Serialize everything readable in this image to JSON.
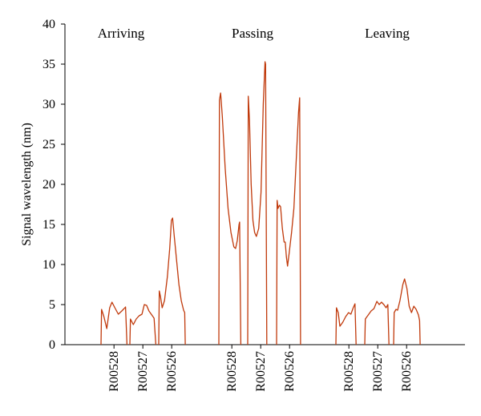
{
  "chart_data": {
    "type": "line",
    "title": "",
    "ylabel": "Signal wavelength (nm)",
    "xlabel": "",
    "ylim": [
      0,
      40
    ],
    "yticks": [
      0,
      5,
      10,
      15,
      20,
      25,
      30,
      35,
      40
    ],
    "grid": false,
    "line_color": "#c0390b",
    "groups": [
      {
        "label": "Arriving",
        "sensors": [
          {
            "name": "R00528",
            "profile": [
              [
                0,
                0
              ],
              [
                0.02,
                4.4
              ],
              [
                0.1,
                3.5
              ],
              [
                0.2,
                2.0
              ],
              [
                0.3,
                4.6
              ],
              [
                0.38,
                5.3
              ],
              [
                0.48,
                4.6
              ],
              [
                0.6,
                3.8
              ],
              [
                0.72,
                4.2
              ],
              [
                0.8,
                4.5
              ],
              [
                0.85,
                4.7
              ],
              [
                0.9,
                0
              ]
            ]
          },
          {
            "name": "R00527",
            "profile": [
              [
                0,
                0
              ],
              [
                0.02,
                3.2
              ],
              [
                0.12,
                2.5
              ],
              [
                0.22,
                3.2
              ],
              [
                0.32,
                3.6
              ],
              [
                0.42,
                3.8
              ],
              [
                0.5,
                5.0
              ],
              [
                0.58,
                4.9
              ],
              [
                0.66,
                4.2
              ],
              [
                0.76,
                3.7
              ],
              [
                0.84,
                3.3
              ],
              [
                0.9,
                0
              ]
            ]
          },
          {
            "name": "R00526",
            "profile": [
              [
                0,
                0
              ],
              [
                0.02,
                6.7
              ],
              [
                0.06,
                6.0
              ],
              [
                0.12,
                4.6
              ],
              [
                0.2,
                5.5
              ],
              [
                0.3,
                8.5
              ],
              [
                0.38,
                12.0
              ],
              [
                0.44,
                15.5
              ],
              [
                0.48,
                15.8
              ],
              [
                0.54,
                13.5
              ],
              [
                0.62,
                10.5
              ],
              [
                0.7,
                7.5
              ],
              [
                0.78,
                5.5
              ],
              [
                0.86,
                4.3
              ],
              [
                0.9,
                4.0
              ],
              [
                0.92,
                0
              ]
            ]
          }
        ]
      },
      {
        "label": "Passing",
        "sensors": [
          {
            "name": "R00528",
            "profile": [
              [
                0,
                0
              ],
              [
                0.02,
                30.5
              ],
              [
                0.06,
                31.4
              ],
              [
                0.12,
                28.5
              ],
              [
                0.22,
                22.0
              ],
              [
                0.32,
                17.0
              ],
              [
                0.42,
                14.0
              ],
              [
                0.52,
                12.2
              ],
              [
                0.58,
                12.0
              ],
              [
                0.64,
                13.0
              ],
              [
                0.7,
                15.0
              ],
              [
                0.72,
                15.3
              ],
              [
                0.76,
                0
              ]
            ]
          },
          {
            "name": "R00527",
            "profile": [
              [
                0,
                0
              ],
              [
                0.02,
                31.0
              ],
              [
                0.06,
                28.0
              ],
              [
                0.12,
                20.0
              ],
              [
                0.18,
                15.5
              ],
              [
                0.24,
                14.0
              ],
              [
                0.3,
                13.5
              ],
              [
                0.38,
                14.5
              ],
              [
                0.46,
                19.0
              ],
              [
                0.54,
                30.0
              ],
              [
                0.6,
                35.3
              ],
              [
                0.62,
                35.0
              ],
              [
                0.66,
                0
              ]
            ]
          },
          {
            "name": "R00526",
            "profile": [
              [
                0,
                0
              ],
              [
                0.02,
                18.0
              ],
              [
                0.05,
                17.0
              ],
              [
                0.1,
                17.4
              ],
              [
                0.14,
                17.2
              ],
              [
                0.2,
                14.5
              ],
              [
                0.26,
                12.8
              ],
              [
                0.3,
                12.8
              ],
              [
                0.34,
                11.0
              ],
              [
                0.38,
                9.8
              ],
              [
                0.44,
                11.5
              ],
              [
                0.52,
                14.0
              ],
              [
                0.6,
                17.0
              ],
              [
                0.68,
                23.0
              ],
              [
                0.76,
                29.0
              ],
              [
                0.8,
                30.8
              ],
              [
                0.83,
                0
              ]
            ]
          }
        ]
      },
      {
        "label": "Leaving",
        "sensors": [
          {
            "name": "R00528",
            "profile": [
              [
                0,
                0
              ],
              [
                0.02,
                4.6
              ],
              [
                0.08,
                4.0
              ],
              [
                0.14,
                2.3
              ],
              [
                0.24,
                2.8
              ],
              [
                0.34,
                3.5
              ],
              [
                0.44,
                4.0
              ],
              [
                0.52,
                3.8
              ],
              [
                0.6,
                4.6
              ],
              [
                0.66,
                5.1
              ],
              [
                0.7,
                0
              ]
            ]
          },
          {
            "name": "R00527",
            "profile": [
              [
                0,
                0
              ],
              [
                0.02,
                3.2
              ],
              [
                0.12,
                3.7
              ],
              [
                0.22,
                4.2
              ],
              [
                0.32,
                4.5
              ],
              [
                0.42,
                5.4
              ],
              [
                0.5,
                5.0
              ],
              [
                0.58,
                5.3
              ],
              [
                0.66,
                5.0
              ],
              [
                0.74,
                4.6
              ],
              [
                0.8,
                5.0
              ],
              [
                0.84,
                0
              ]
            ]
          },
          {
            "name": "R00526",
            "profile": [
              [
                0,
                0
              ],
              [
                0.02,
                4.0
              ],
              [
                0.08,
                4.4
              ],
              [
                0.14,
                4.3
              ],
              [
                0.22,
                5.5
              ],
              [
                0.32,
                7.5
              ],
              [
                0.38,
                8.2
              ],
              [
                0.46,
                7.0
              ],
              [
                0.54,
                4.8
              ],
              [
                0.62,
                4.0
              ],
              [
                0.7,
                4.8
              ],
              [
                0.78,
                4.4
              ],
              [
                0.86,
                3.7
              ],
              [
                0.9,
                3.0
              ],
              [
                0.92,
                0
              ]
            ]
          }
        ]
      }
    ]
  }
}
